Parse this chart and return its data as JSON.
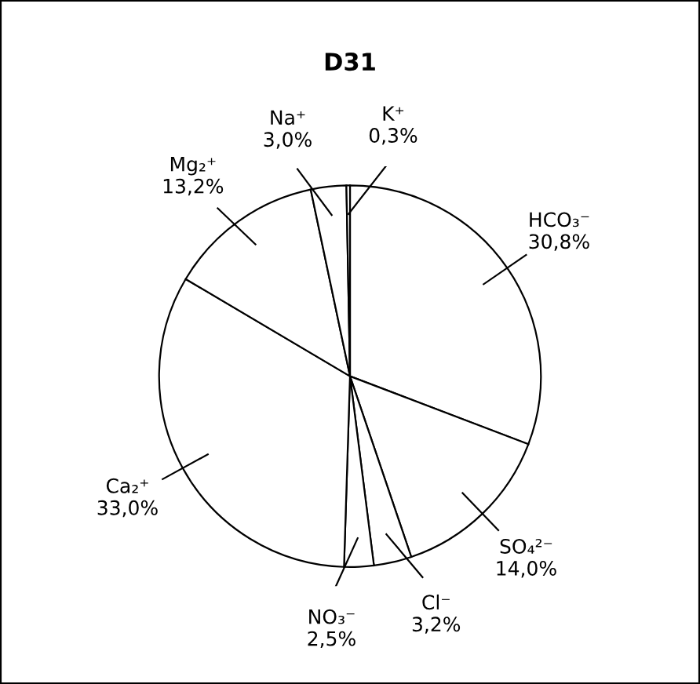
{
  "chart_data": {
    "type": "pie",
    "title": "D31",
    "categories": [
      "HCO₃⁻",
      "SO₄²⁻",
      "Cl⁻",
      "NO₃⁻",
      "Ca₂⁺",
      "Mg₂⁺",
      "Na⁺",
      "K⁺"
    ],
    "values": [
      30.8,
      14.0,
      3.2,
      2.5,
      33.0,
      13.2,
      3.0,
      0.3
    ],
    "value_labels": [
      "30,8%",
      "14,0%",
      "3,2%",
      "2,5%",
      "33,0%",
      "13,2%",
      "3,0%",
      "0,3%"
    ],
    "colors": [
      "#ffffff",
      "#ffffff",
      "#ffffff",
      "#ffffff",
      "#ffffff",
      "#ffffff",
      "#ffffff",
      "#ffffff"
    ],
    "legend": false
  }
}
